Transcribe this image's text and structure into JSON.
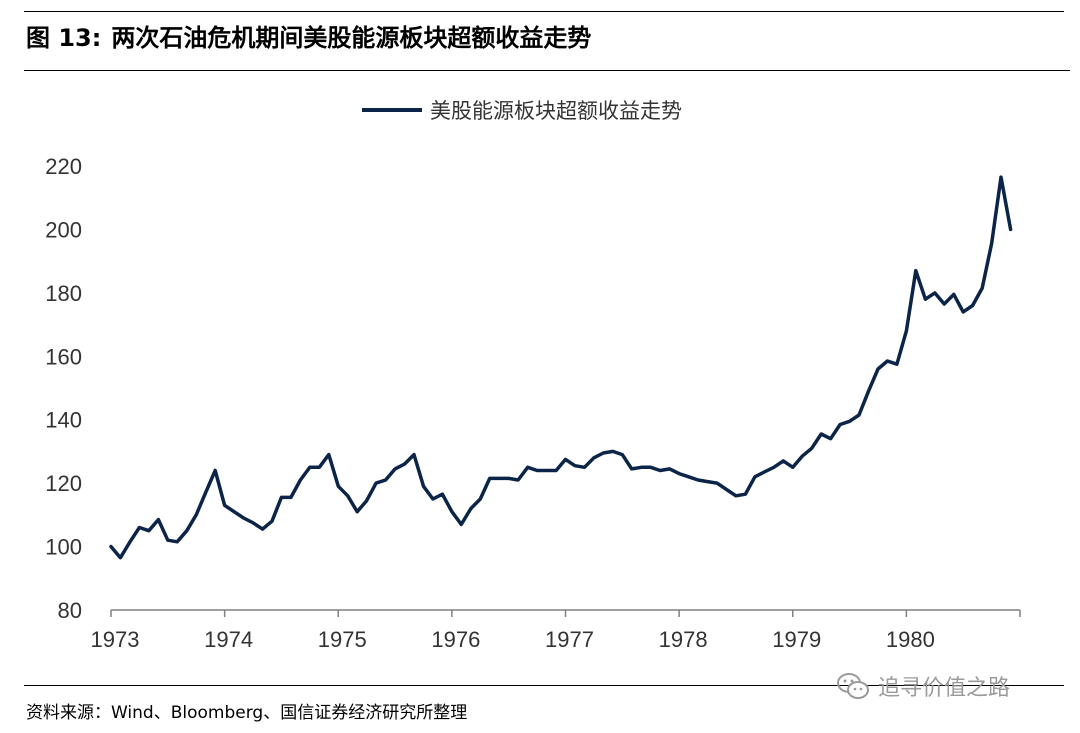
{
  "header": {
    "figure_label": "图 13:",
    "title": "两次石油危机期间美股能源板块超额收益走势"
  },
  "footer": {
    "source": "资料来源：Wind、Bloomberg、国信证券经济研究所整理",
    "watermark": "追寻价值之路",
    "watermark_icon": "wechat-icon"
  },
  "colors": {
    "series": "#0b2447",
    "axis": "#808080"
  },
  "chart_data": {
    "type": "line",
    "title": "",
    "xlabel": "",
    "ylabel": "",
    "xlim": [
      1973,
      1981
    ],
    "ylim": [
      80,
      220
    ],
    "yticks": [
      80,
      100,
      120,
      140,
      160,
      180,
      200,
      220
    ],
    "xticks": [
      "1973",
      "1974",
      "1975",
      "1976",
      "1977",
      "1978",
      "1979",
      "1980"
    ],
    "grid": false,
    "legend": "top-center",
    "series": [
      {
        "name": "美股能源板块超额收益走势",
        "x": [
          1973.0,
          1973.083,
          1973.167,
          1973.25,
          1973.333,
          1973.417,
          1973.5,
          1973.583,
          1973.667,
          1973.75,
          1973.833,
          1973.917,
          1974.0,
          1974.083,
          1974.167,
          1974.25,
          1974.333,
          1974.417,
          1974.5,
          1974.583,
          1974.667,
          1974.75,
          1974.833,
          1974.917,
          1975.0,
          1975.083,
          1975.167,
          1975.25,
          1975.333,
          1975.417,
          1975.5,
          1975.583,
          1975.667,
          1975.75,
          1975.833,
          1975.917,
          1976.0,
          1976.083,
          1976.167,
          1976.25,
          1976.333,
          1976.417,
          1976.5,
          1976.583,
          1976.667,
          1976.75,
          1976.833,
          1976.917,
          1977.0,
          1977.083,
          1977.167,
          1977.25,
          1977.333,
          1977.417,
          1977.5,
          1977.583,
          1977.667,
          1977.75,
          1977.833,
          1977.917,
          1978.0,
          1978.083,
          1978.167,
          1978.25,
          1978.333,
          1978.417,
          1978.5,
          1978.583,
          1978.667,
          1978.75,
          1978.833,
          1978.917,
          1979.0,
          1979.083,
          1979.167,
          1979.25,
          1979.333,
          1979.417,
          1979.5,
          1979.583,
          1979.667,
          1979.75,
          1979.833,
          1979.917,
          1980.0,
          1980.083,
          1980.167,
          1980.25,
          1980.333,
          1980.417,
          1980.5,
          1980.583,
          1980.667,
          1980.75,
          1980.833,
          1980.917
        ],
        "y": [
          100,
          96.5,
          101.5,
          106,
          105,
          108.5,
          102,
          101.5,
          105,
          110,
          117,
          124,
          113,
          111,
          109,
          107.5,
          105.5,
          108,
          115.5,
          115.5,
          121,
          125,
          125,
          129,
          119,
          116,
          111,
          114.5,
          120,
          121,
          124.5,
          126,
          129,
          119,
          115,
          116.5,
          111,
          107,
          112,
          115,
          121.5,
          121.5,
          121.5,
          121,
          125,
          124,
          124,
          124,
          127.5,
          125.5,
          125,
          128,
          129.5,
          130,
          129,
          124.5,
          125,
          125,
          124,
          124.5,
          123,
          122,
          121,
          120.5,
          120,
          118,
          116,
          116.5,
          122,
          123.5,
          125,
          127,
          125,
          128.5,
          131,
          135.5,
          134,
          138.5,
          139.5,
          141.5,
          149,
          156,
          158.5,
          157.5,
          168,
          187,
          178,
          180,
          176.5,
          179.5,
          174,
          176,
          181.5,
          195.5,
          216.5,
          200
        ]
      }
    ]
  }
}
